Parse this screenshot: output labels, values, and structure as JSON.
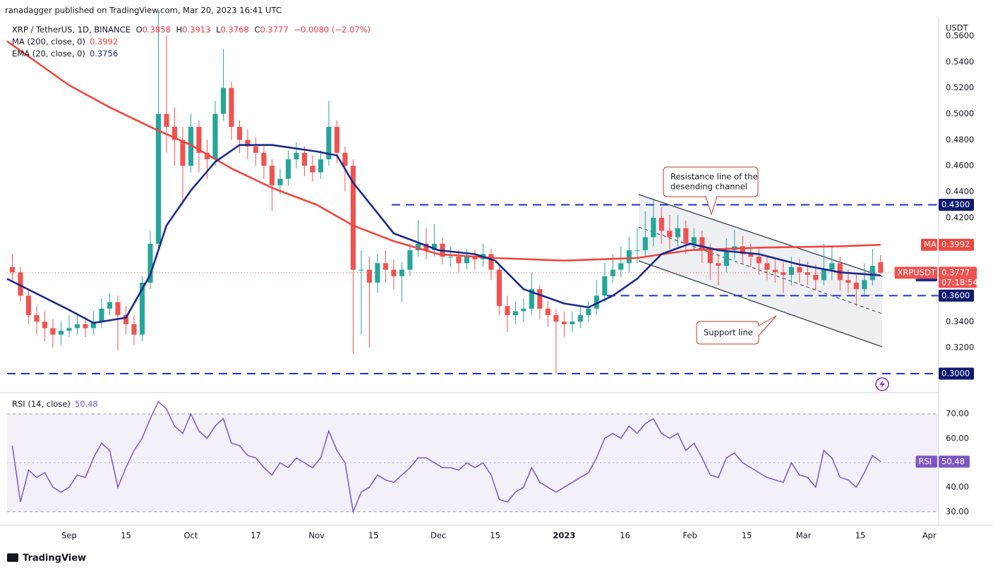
{
  "header": {
    "publisher": "ranadagger published on TradingView.com, Mar 20, 2023 16:41 UTC",
    "symbol": "XRP / TetherUS, 1D, BINANCE",
    "ohlc": [
      {
        "key": "O",
        "value": "0.3858"
      },
      {
        "key": "H",
        "value": "0.3913"
      },
      {
        "key": "L",
        "value": "0.3768"
      },
      {
        "key": "C",
        "value": "0.3777"
      }
    ],
    "change": "−0.0080 (−2.07%)",
    "brand": "TradingView"
  },
  "chart_data": [
    {
      "type": "candlestick",
      "axis_unit": "USDT",
      "grid": false,
      "up_color": "#26a69a",
      "down_color": "#ef5350",
      "xlim": [
        -15.3,
        214.3
      ],
      "ylim": [
        0.2864,
        0.5714
      ],
      "xticks": [
        {
          "value": 0,
          "label": "Sep"
        },
        {
          "value": 14,
          "label": "15"
        },
        {
          "value": 30,
          "label": "Oct"
        },
        {
          "value": 46,
          "label": "17"
        },
        {
          "value": 61,
          "label": "Nov"
        },
        {
          "value": 75,
          "label": "15"
        },
        {
          "value": 91,
          "label": "Dec"
        },
        {
          "value": 105,
          "label": "15"
        },
        {
          "value": 122,
          "label": "2023"
        },
        {
          "value": 137,
          "label": "16"
        },
        {
          "value": 153,
          "label": "Feb"
        },
        {
          "value": 167,
          "label": "15"
        },
        {
          "value": 181,
          "label": "Mar"
        },
        {
          "value": 195,
          "label": "15"
        },
        {
          "value": 212,
          "label": "Apr"
        }
      ],
      "yticks": [
        {
          "value": 0.32,
          "label": "0.3200"
        },
        {
          "value": 0.34,
          "label": "0.3400"
        },
        {
          "value": 0.42,
          "label": "0.4200"
        },
        {
          "value": 0.44,
          "label": "0.4400"
        },
        {
          "value": 0.46,
          "label": "0.4600"
        },
        {
          "value": 0.48,
          "label": "0.4800"
        },
        {
          "value": 0.5,
          "label": "0.5000"
        },
        {
          "value": 0.52,
          "label": "0.5200"
        },
        {
          "value": 0.54,
          "label": "0.5400"
        },
        {
          "value": 0.56,
          "label": "0.5600"
        }
      ],
      "x": [
        -14,
        -12,
        -10,
        -8,
        -6,
        -4,
        -2,
        0,
        2,
        4,
        6,
        8,
        10,
        12,
        14,
        16,
        18,
        20,
        22,
        24,
        26,
        28,
        30,
        32,
        34,
        36,
        38,
        40,
        42,
        44,
        46,
        48,
        50,
        52,
        54,
        56,
        58,
        60,
        62,
        64,
        66,
        68,
        70,
        72,
        74,
        76,
        78,
        80,
        82,
        84,
        86,
        88,
        90,
        92,
        94,
        96,
        98,
        100,
        102,
        104,
        106,
        108,
        110,
        112,
        114,
        116,
        118,
        120,
        122,
        124,
        126,
        128,
        130,
        132,
        134,
        136,
        138,
        140,
        142,
        144,
        146,
        148,
        150,
        152,
        154,
        156,
        158,
        160,
        162,
        164,
        166,
        168,
        170,
        172,
        174,
        176,
        178,
        180,
        182,
        184,
        186,
        188,
        190,
        192,
        194,
        196,
        198,
        200
      ],
      "open": [
        0.382,
        0.378,
        0.36,
        0.345,
        0.34,
        0.335,
        0.33,
        0.333,
        0.335,
        0.338,
        0.335,
        0.34,
        0.35,
        0.355,
        0.345,
        0.338,
        0.33,
        0.37,
        0.4,
        0.5,
        0.49,
        0.48,
        0.46,
        0.49,
        0.47,
        0.465,
        0.5,
        0.52,
        0.49,
        0.48,
        0.475,
        0.47,
        0.46,
        0.445,
        0.45,
        0.465,
        0.47,
        0.46,
        0.455,
        0.465,
        0.49,
        0.47,
        0.46,
        0.38,
        0.38,
        0.37,
        0.385,
        0.38,
        0.375,
        0.38,
        0.395,
        0.4,
        0.395,
        0.4,
        0.39,
        0.39,
        0.385,
        0.39,
        0.388,
        0.392,
        0.38,
        0.352,
        0.345,
        0.348,
        0.35,
        0.365,
        0.35,
        0.345,
        0.34,
        0.338,
        0.34,
        0.345,
        0.35,
        0.36,
        0.375,
        0.38,
        0.385,
        0.395,
        0.395,
        0.405,
        0.42,
        0.41,
        0.405,
        0.412,
        0.4,
        0.405,
        0.395,
        0.385,
        0.383,
        0.395,
        0.398,
        0.392,
        0.39,
        0.385,
        0.38,
        0.378,
        0.376,
        0.382,
        0.378,
        0.376,
        0.372,
        0.38,
        0.385,
        0.372,
        0.37,
        0.365,
        0.372,
        0.3858
      ],
      "high": [
        0.392,
        0.382,
        0.365,
        0.352,
        0.348,
        0.342,
        0.34,
        0.345,
        0.346,
        0.344,
        0.348,
        0.358,
        0.362,
        0.36,
        0.352,
        0.345,
        0.375,
        0.41,
        0.58,
        0.56,
        0.505,
        0.49,
        0.5,
        0.495,
        0.48,
        0.51,
        0.55,
        0.525,
        0.495,
        0.488,
        0.482,
        0.476,
        0.465,
        0.458,
        0.472,
        0.478,
        0.475,
        0.468,
        0.472,
        0.51,
        0.495,
        0.475,
        0.465,
        0.395,
        0.39,
        0.392,
        0.395,
        0.388,
        0.386,
        0.4,
        0.418,
        0.412,
        0.415,
        0.405,
        0.398,
        0.395,
        0.396,
        0.395,
        0.4,
        0.396,
        0.384,
        0.36,
        0.356,
        0.358,
        0.378,
        0.368,
        0.356,
        0.35,
        0.348,
        0.348,
        0.352,
        0.356,
        0.372,
        0.385,
        0.392,
        0.398,
        0.405,
        0.412,
        0.425,
        0.435,
        0.428,
        0.422,
        0.422,
        0.418,
        0.412,
        0.41,
        0.4,
        0.392,
        0.404,
        0.41,
        0.406,
        0.4,
        0.396,
        0.39,
        0.388,
        0.386,
        0.39,
        0.388,
        0.386,
        0.384,
        0.4,
        0.398,
        0.39,
        0.38,
        0.376,
        0.385,
        0.396,
        0.3913
      ],
      "low": [
        0.372,
        0.355,
        0.338,
        0.33,
        0.325,
        0.32,
        0.322,
        0.328,
        0.33,
        0.328,
        0.33,
        0.335,
        0.345,
        0.318,
        0.33,
        0.322,
        0.325,
        0.365,
        0.395,
        0.47,
        0.46,
        0.43,
        0.455,
        0.455,
        0.45,
        0.46,
        0.495,
        0.48,
        0.47,
        0.465,
        0.46,
        0.45,
        0.425,
        0.438,
        0.445,
        0.458,
        0.452,
        0.448,
        0.45,
        0.46,
        0.462,
        0.44,
        0.315,
        0.33,
        0.32,
        0.362,
        0.37,
        0.365,
        0.355,
        0.375,
        0.39,
        0.388,
        0.39,
        0.384,
        0.382,
        0.378,
        0.38,
        0.38,
        0.382,
        0.372,
        0.345,
        0.332,
        0.338,
        0.34,
        0.345,
        0.342,
        0.336,
        0.3,
        0.328,
        0.332,
        0.335,
        0.34,
        0.345,
        0.355,
        0.37,
        0.374,
        0.378,
        0.385,
        0.39,
        0.398,
        0.4,
        0.396,
        0.398,
        0.392,
        0.395,
        0.385,
        0.372,
        0.368,
        0.378,
        0.388,
        0.385,
        0.382,
        0.376,
        0.372,
        0.37,
        0.362,
        0.368,
        0.37,
        0.368,
        0.364,
        0.368,
        0.372,
        0.364,
        0.362,
        0.352,
        0.36,
        0.368,
        0.3768
      ],
      "close": [
        0.378,
        0.36,
        0.345,
        0.34,
        0.335,
        0.33,
        0.333,
        0.335,
        0.338,
        0.335,
        0.34,
        0.35,
        0.355,
        0.345,
        0.338,
        0.33,
        0.37,
        0.4,
        0.5,
        0.49,
        0.48,
        0.46,
        0.49,
        0.47,
        0.465,
        0.5,
        0.52,
        0.49,
        0.48,
        0.475,
        0.47,
        0.46,
        0.445,
        0.45,
        0.465,
        0.47,
        0.46,
        0.455,
        0.465,
        0.49,
        0.47,
        0.46,
        0.38,
        0.38,
        0.37,
        0.385,
        0.38,
        0.375,
        0.38,
        0.395,
        0.4,
        0.395,
        0.4,
        0.39,
        0.39,
        0.385,
        0.39,
        0.388,
        0.392,
        0.38,
        0.352,
        0.345,
        0.348,
        0.35,
        0.365,
        0.35,
        0.345,
        0.34,
        0.338,
        0.34,
        0.345,
        0.35,
        0.36,
        0.375,
        0.38,
        0.385,
        0.395,
        0.395,
        0.405,
        0.42,
        0.41,
        0.405,
        0.412,
        0.4,
        0.405,
        0.395,
        0.385,
        0.383,
        0.395,
        0.398,
        0.392,
        0.39,
        0.385,
        0.38,
        0.378,
        0.376,
        0.382,
        0.378,
        0.376,
        0.372,
        0.38,
        0.385,
        0.372,
        0.37,
        0.365,
        0.372,
        0.383,
        0.3777
      ],
      "last": {
        "tag": "XRPUSDT",
        "label": "0.3777",
        "countdown": "07:18:54"
      },
      "overlays": [
        {
          "name": "MA (200, close, 0)",
          "tag": "MA",
          "color": "#f0463e",
          "value_label": "0.3992",
          "x": [
            -15.3,
            0,
            10,
            20,
            30,
            40,
            50,
            61,
            70,
            80,
            91,
            105,
            122,
            140,
            153,
            170,
            190,
            200
          ],
          "values": [
            0.556,
            0.522,
            0.505,
            0.49,
            0.476,
            0.458,
            0.443,
            0.43,
            0.414,
            0.402,
            0.392,
            0.389,
            0.387,
            0.389,
            0.395,
            0.397,
            0.398,
            0.3992
          ]
        },
        {
          "name": "EMA (20, close, 0)",
          "tag": "EMA",
          "color": "#1a2a8c",
          "value_label": "0.3756",
          "x": [
            -15.3,
            0,
            6,
            14,
            20,
            24,
            30,
            36,
            42,
            50,
            61,
            66,
            70,
            80,
            91,
            100,
            105,
            112,
            122,
            128,
            134,
            140,
            146,
            153,
            160,
            170,
            180,
            190,
            200
          ],
          "values": [
            0.373,
            0.349,
            0.339,
            0.343,
            0.376,
            0.414,
            0.441,
            0.463,
            0.476,
            0.476,
            0.471,
            0.468,
            0.447,
            0.408,
            0.395,
            0.392,
            0.387,
            0.365,
            0.354,
            0.351,
            0.36,
            0.373,
            0.392,
            0.4,
            0.395,
            0.392,
            0.384,
            0.378,
            0.3756
          ]
        }
      ],
      "levels": [
        {
          "value": 0.43,
          "label": "0.4300",
          "x_start": 79.5
        },
        {
          "value": 0.36,
          "label": "0.3600",
          "x_start": 132.5
        },
        {
          "value": 0.3,
          "label": "0.3000",
          "x_start": -15.3
        }
      ],
      "level_color": "#1f33c4",
      "annotations": [
        {
          "lines": [
            "Resistance line of the",
            "desending channel"
          ]
        },
        {
          "lines": [
            "Support line"
          ]
        }
      ]
    },
    {
      "type": "line",
      "xlim": [
        -15.3,
        214.3
      ],
      "ylim": [
        24.5,
        77.8
      ],
      "yticks": [
        {
          "value": 30,
          "label": "30.00"
        },
        {
          "value": 40,
          "label": "40.00"
        },
        {
          "value": 60,
          "label": "60.00"
        },
        {
          "value": 70,
          "label": "70.00"
        }
      ],
      "bands": [
        30,
        70
      ],
      "midline": 50,
      "x": [
        -14,
        -12,
        -10,
        -8,
        -6,
        -4,
        -2,
        0,
        2,
        4,
        6,
        8,
        10,
        12,
        14,
        16,
        18,
        20,
        22,
        24,
        26,
        28,
        30,
        32,
        34,
        36,
        38,
        40,
        42,
        44,
        46,
        48,
        50,
        52,
        54,
        56,
        58,
        60,
        62,
        64,
        66,
        68,
        70,
        72,
        74,
        76,
        78,
        80,
        82,
        84,
        86,
        88,
        90,
        92,
        94,
        96,
        98,
        100,
        102,
        104,
        106,
        108,
        110,
        112,
        114,
        116,
        118,
        120,
        122,
        124,
        126,
        128,
        130,
        132,
        134,
        136,
        138,
        140,
        142,
        144,
        146,
        148,
        150,
        152,
        154,
        156,
        158,
        160,
        162,
        164,
        166,
        168,
        170,
        172,
        174,
        176,
        178,
        180,
        182,
        184,
        186,
        188,
        190,
        192,
        194,
        196,
        198,
        200
      ],
      "series": [
        {
          "name": "RSI (14, close)",
          "tag": "RSI",
          "color": "#7e57c2",
          "value_label": "50.48",
          "values": [
            57,
            34,
            47,
            44,
            46,
            40,
            38,
            40,
            45,
            44,
            52,
            58,
            55,
            40,
            48,
            55,
            60,
            68,
            75,
            72,
            65,
            62,
            70,
            63,
            60,
            65,
            68,
            58,
            57,
            53,
            52,
            48,
            45,
            50,
            48,
            52,
            50,
            48,
            52,
            63,
            55,
            50,
            30,
            38,
            40,
            45,
            43,
            42,
            45,
            48,
            52,
            52,
            50,
            48,
            48,
            47,
            50,
            48,
            50,
            45,
            35,
            34,
            38,
            40,
            48,
            42,
            40,
            38,
            40,
            42,
            44,
            46,
            52,
            60,
            62,
            60,
            65,
            62,
            66,
            68,
            62,
            60,
            62,
            55,
            58,
            52,
            45,
            44,
            52,
            54,
            50,
            48,
            46,
            44,
            43,
            42,
            50,
            45,
            44,
            40,
            55,
            52,
            44,
            43,
            40,
            46,
            53,
            50.48
          ]
        }
      ]
    }
  ]
}
